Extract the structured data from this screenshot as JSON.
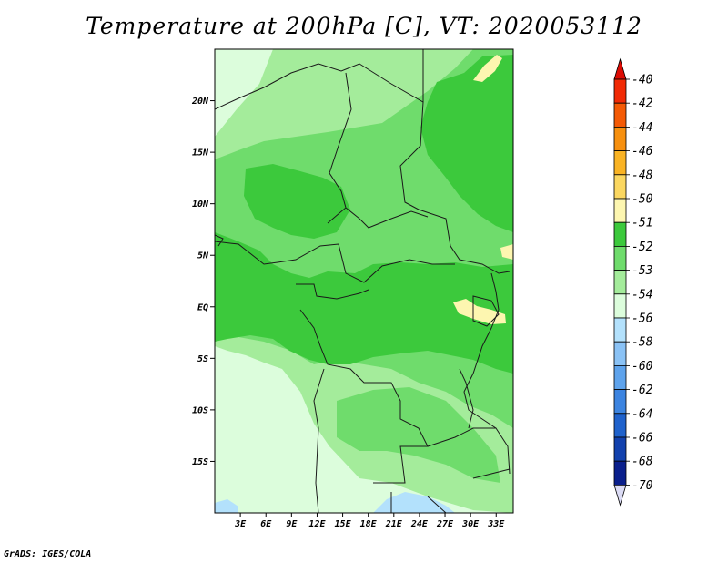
{
  "title": "Temperature at 200hPa [C], VT: 2020053112",
  "footer": "GrADS: IGES/COLA",
  "map": {
    "lon_range": [
      0,
      35
    ],
    "lat_range": [
      -20,
      25
    ],
    "lon_ticks": [
      "3E",
      "6E",
      "9E",
      "12E",
      "15E",
      "18E",
      "21E",
      "24E",
      "27E",
      "30E",
      "33E"
    ],
    "lat_ticks": [
      "20N",
      "15N",
      "10N",
      "5N",
      "EQ",
      "5S",
      "10S",
      "15S"
    ]
  },
  "colorbar": {
    "labels": [
      "-40",
      "-42",
      "-44",
      "-46",
      "-48",
      "-50",
      "-51",
      "-52",
      "-53",
      "-54",
      "-56",
      "-58",
      "-60",
      "-62",
      "-64",
      "-66",
      "-68",
      "-70"
    ],
    "colors": [
      "#f12a05",
      "#f45a05",
      "#f7900f",
      "#f9b324",
      "#fbd760",
      "#fdf6b0",
      "#3cc93c",
      "#6fdc6c",
      "#a4ec9b",
      "#dcfddc",
      "#b3e1fc",
      "#8ac2f5",
      "#5ea3ec",
      "#3c84e0",
      "#1f62cc",
      "#1241ad",
      "#0a1f8c"
    ],
    "top_arrow_color": "#dd0c04",
    "bottom_arrow_color": "#dcdcf5"
  }
}
